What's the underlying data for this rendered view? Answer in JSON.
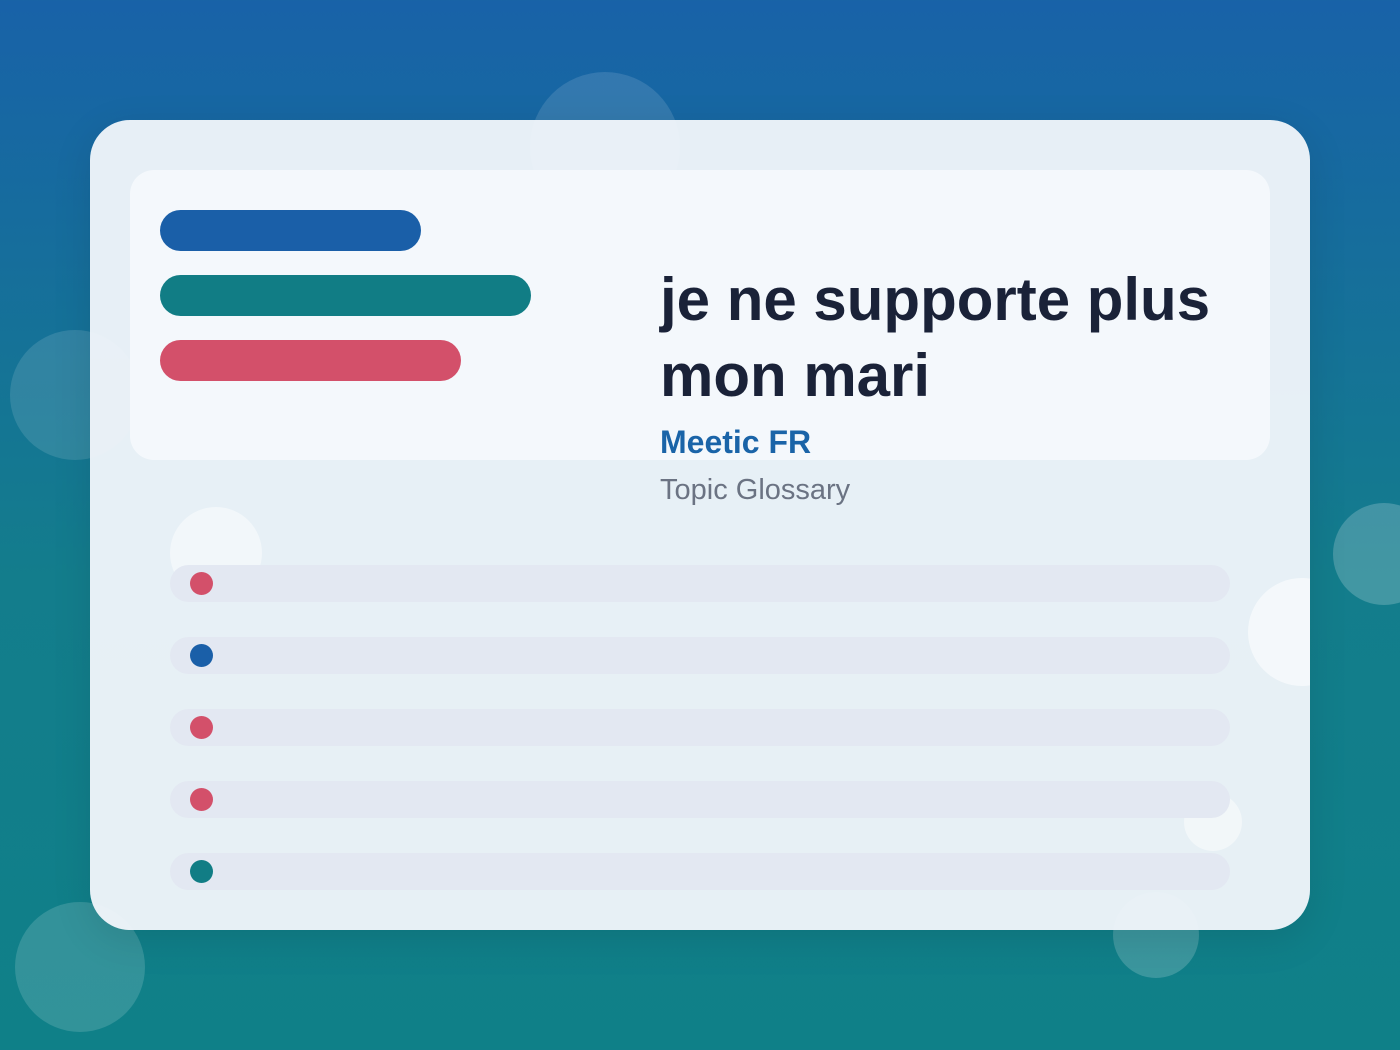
{
  "title": "je ne supporte plus mon mari",
  "brand": "Meetic FR",
  "subtitle": "Topic Glossary",
  "colors": {
    "blue": "#1a5fa8",
    "teal": "#117d85",
    "red": "#d3506a",
    "title_text": "#1a2238",
    "brand_text": "#1a64a8",
    "subtitle_text": "#6b7383",
    "row_background": "#e3e8f2"
  },
  "header_bars": [
    {
      "color": "blue"
    },
    {
      "color": "teal"
    },
    {
      "color": "red"
    }
  ],
  "list_rows": [
    {
      "dot_color": "red"
    },
    {
      "dot_color": "blue"
    },
    {
      "dot_color": "red"
    },
    {
      "dot_color": "red"
    },
    {
      "dot_color": "teal"
    }
  ]
}
